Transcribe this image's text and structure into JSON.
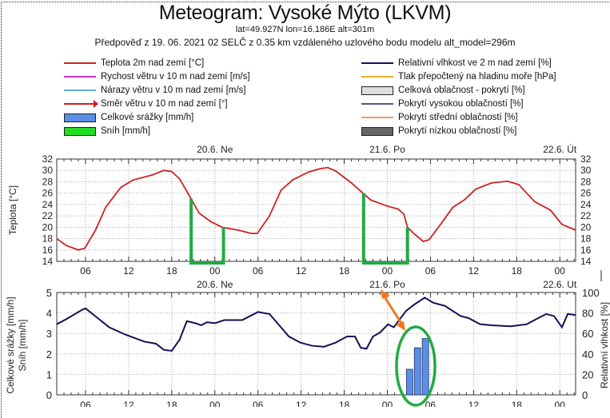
{
  "header": {
    "title": "Meteogram: Vysoké Mýto (LKVM)",
    "location": "lat=49.927N lon=16.186E alt=301m",
    "forecast": "Předpověď z 19. 06. 2021 02 SELČ z 0.35 km vzdáleného uzlového bodu modelu alt_model=296m"
  },
  "legend": {
    "left": [
      {
        "label": "Teplota 2m nad zemí [°C]",
        "kind": "line",
        "color": "#cc2222"
      },
      {
        "label": "Rychost větru v 10 m nad zemí [m/s]",
        "kind": "line",
        "color": "#cc33cc"
      },
      {
        "label": "Nárazy větru v 10 m nad zemí [m/s]",
        "kind": "line",
        "color": "#66aadd"
      },
      {
        "label": "Směr větru v 10 m nad zemí [°]",
        "kind": "arrow",
        "color": "#cc2222"
      },
      {
        "label": "Celkové srážky [mm/h]",
        "kind": "box",
        "color": "#5b8ee6"
      },
      {
        "label": "Sníh [mm/h]",
        "kind": "box",
        "color": "#22dd22"
      }
    ],
    "right": [
      {
        "label": "Relativní vlhkost ve 2 m nad zemí [%]",
        "kind": "line",
        "color": "#111155"
      },
      {
        "label": "Tlak přepočtený na hladinu moře [hPa]",
        "kind": "line",
        "color": "#e6b422"
      },
      {
        "label": "Celková oblačnost - pokrytí [%]",
        "kind": "box",
        "color": "#dddddd"
      },
      {
        "label": "Pokrytí vysokou oblačností [%]",
        "kind": "line",
        "color": "#555588"
      },
      {
        "label": "Pokrytí střední oblačností [%]",
        "kind": "line",
        "color": "#ee9966"
      },
      {
        "label": "Pokrytí nízkou oblačností [%]",
        "kind": "box",
        "color": "#666666"
      }
    ]
  },
  "chart_data": [
    {
      "type": "line",
      "title": "Teplota",
      "ylabel": "Teplota [°C]",
      "ylim": [
        14,
        32
      ],
      "yticks": [
        14,
        16,
        18,
        20,
        22,
        24,
        26,
        28,
        30,
        32
      ],
      "x_unit": "hours since 19.6. 02:00",
      "xlim": [
        0,
        72.2
      ],
      "xticks": [
        {
          "h": 4,
          "label": "06"
        },
        {
          "h": 10,
          "label": "12"
        },
        {
          "h": 16,
          "label": "18"
        },
        {
          "h": 22,
          "label": "00"
        },
        {
          "h": 28,
          "label": "06"
        },
        {
          "h": 34,
          "label": "12"
        },
        {
          "h": 40,
          "label": "18"
        },
        {
          "h": 46,
          "label": "00"
        },
        {
          "h": 52,
          "label": "06"
        },
        {
          "h": 58,
          "label": "12"
        },
        {
          "h": 64,
          "label": "18"
        },
        {
          "h": 70,
          "label": "00"
        }
      ],
      "date_labels": [
        {
          "h": 22,
          "label": "20.6. Ne"
        },
        {
          "h": 46,
          "label": "21.6. Po"
        },
        {
          "h": 70,
          "label": "22.6. Út"
        }
      ],
      "grid": true,
      "series": [
        {
          "name": "Teplota 2m nad zemí [°C]",
          "color": "#cc2222",
          "x": [
            0,
            1.3,
            3.0,
            3.9,
            5.4,
            6.8,
            8.9,
            10.6,
            13.3,
            14.9,
            16.0,
            17.1,
            18.7,
            19.8,
            21.4,
            23.0,
            25.2,
            27.1,
            27.9,
            29.6,
            31.2,
            32.8,
            35.0,
            36.6,
            37.7,
            38.8,
            41.0,
            42.6,
            43.7,
            45.8,
            47.5,
            48.3,
            48.8,
            49.6,
            51.0,
            51.8,
            53.4,
            55.1,
            56.7,
            58.3,
            60.5,
            62.7,
            64.3,
            66.5,
            68.7,
            70.3,
            72.2
          ],
          "y": [
            18,
            16.8,
            16,
            16.3,
            19.5,
            23.5,
            27,
            28.3,
            29.2,
            30,
            29.8,
            28.5,
            25,
            22.5,
            21,
            20,
            19.5,
            18.9,
            18.9,
            22,
            26.5,
            28.3,
            29.7,
            30.3,
            30.5,
            29.9,
            27.8,
            26,
            24.8,
            23.8,
            23.2,
            22.3,
            20,
            19,
            17.5,
            17.8,
            20.5,
            23.5,
            24.8,
            26.7,
            27.8,
            28.1,
            27.5,
            24.5,
            23,
            20.5,
            19.5
          ]
        }
      ]
    },
    {
      "type": "bar+line",
      "ylabel_left": [
        "Celkové srážky [mm/h]",
        "Sníh [mm/h]"
      ],
      "ylabel_right": "Relativní vlhkost [%]",
      "ylim_left": [
        0,
        5
      ],
      "yticks_left": [
        0,
        1,
        2,
        3,
        4,
        5
      ],
      "ylim_right": [
        0,
        100
      ],
      "yticks_right": [
        0,
        20,
        40,
        60,
        80,
        100
      ],
      "xlim": [
        0,
        72.2
      ],
      "date_labels": [
        {
          "h": 22,
          "label": "20.6. Ne"
        },
        {
          "h": 46,
          "label": "21.6. Po"
        },
        {
          "h": 70,
          "label": "22.6. Ut"
        }
      ],
      "grid": true,
      "bars": {
        "name": "Celkové srážky [mm/h]",
        "color": "#5b8ee6",
        "x": [
          49.1,
          50.2,
          51.3
        ],
        "values": [
          1.25,
          2.3,
          2.75
        ]
      },
      "series": [
        {
          "name": "Relativní vlhkost ve 2 m nad zemí [%]",
          "color": "#111155",
          "x": [
            0,
            1.34,
            3.5,
            4,
            5.7,
            7.3,
            9.5,
            12.2,
            13.8,
            14.9,
            16.0,
            17.1,
            18.1,
            19.3,
            20.1,
            20.9,
            22.0,
            23.3,
            25.8,
            26.9,
            28.0,
            29.6,
            31.2,
            32.3,
            33.9,
            35.5,
            37.2,
            38.8,
            40.4,
            41.5,
            42.3,
            43.1,
            44.0,
            45.0,
            46.1,
            46.9,
            48.6,
            49.7,
            51.2,
            52.4,
            54.0,
            56.2,
            57.3,
            58.9,
            60.5,
            63.2,
            65.4,
            67.0,
            68.1,
            69.2,
            70.3,
            71.1,
            72.2
          ],
          "y": [
            69,
            74,
            83,
            84.5,
            75,
            66,
            59,
            52,
            50,
            44,
            43,
            54,
            72,
            70,
            68,
            71,
            70,
            73,
            73,
            77,
            81,
            79,
            66,
            57,
            51,
            48,
            47,
            51,
            57,
            57,
            46,
            45,
            57,
            61,
            69,
            66,
            82,
            88,
            95,
            90,
            87,
            77,
            75,
            69,
            68,
            67,
            69,
            75,
            79,
            77,
            66,
            79,
            78
          ]
        }
      ]
    }
  ]
}
